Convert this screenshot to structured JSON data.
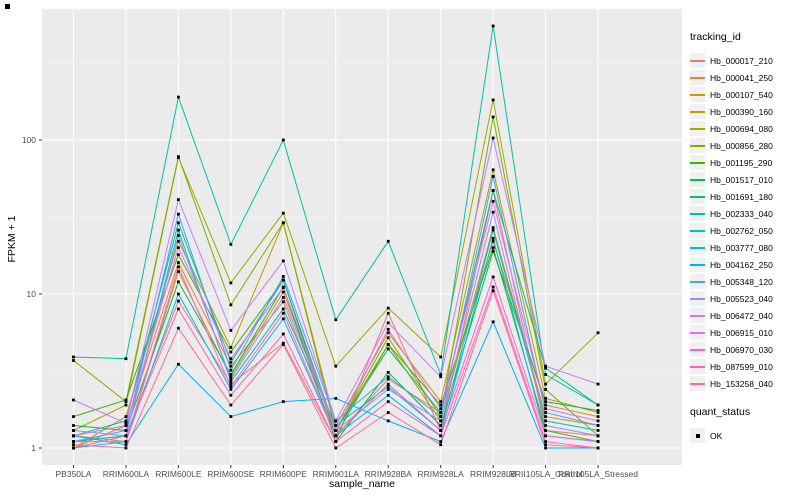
{
  "figure": {
    "x_axis_title": "sample_name",
    "y_axis_title": "FPKM + 1"
  },
  "legend": {
    "tracking_title": "tracking_id",
    "quant_title": "quant_status",
    "quant_ok_label": "OK"
  },
  "chart_data": {
    "type": "line",
    "title": "",
    "xlabel": "sample_name",
    "ylabel": "FPKM + 1",
    "y_scale": "log10",
    "grid": true,
    "legend_position": "right",
    "panel_bg": "#EBEBEB",
    "grid_color": "#FFFFFF",
    "tick_label_color": "#4D4D4D",
    "legend_key_bg": "#F0F0F0",
    "point_marker": {
      "shape": "square",
      "color": "#000000",
      "meaning": "quant_status OK"
    },
    "categories": [
      "PB350LA",
      "RRIM600LA",
      "RRIM600LE",
      "RRIM600SE",
      "RRIM600PE",
      "RRIM901LA",
      "RRIM928BA",
      "RRIM928LA",
      "RRIM928LB",
      "RRII105LA_Control",
      "RRII105LA_Stressed"
    ],
    "y_axis": {
      "ticks": [
        1,
        10,
        100
      ],
      "tick_labels": [
        "1",
        "10",
        "100"
      ],
      "minor_ticks": [
        3.162,
        31.623,
        316.23
      ],
      "visible_range_approx": [
        0.78,
        700
      ]
    },
    "series": [
      {
        "name": "Hb_000017_210",
        "color": "#F8766D",
        "values": [
          1.1,
          1.2,
          9,
          2.6,
          4.8,
          1.1,
          7.5,
          1.3,
          47,
          1.3,
          1.2
        ]
      },
      {
        "name": "Hb_000041_250",
        "color": "#EA8331",
        "values": [
          1.0,
          1.4,
          16,
          3.4,
          8.9,
          1.2,
          2.8,
          1.7,
          22,
          1.9,
          1.6
        ]
      },
      {
        "name": "Hb_000107_540",
        "color": "#D89000",
        "values": [
          1.2,
          1.1,
          14,
          2.9,
          10.3,
          1.3,
          4.7,
          1.5,
          27,
          1.6,
          1.4
        ]
      },
      {
        "name": "Hb_000390_160",
        "color": "#C09B00",
        "values": [
          1.0,
          1.6,
          22,
          4.5,
          29,
          1.4,
          5.6,
          2.0,
          64,
          2.1,
          1.7
        ]
      },
      {
        "name": "Hb_000694_080",
        "color": "#A3A500",
        "values": [
          1.3,
          1.9,
          77,
          11.8,
          33.5,
          3.4,
          8.1,
          3.9,
          182,
          2.6,
          5.6
        ]
      },
      {
        "name": "Hb_000856_280",
        "color": "#7CAE00",
        "values": [
          3.7,
          2.0,
          78,
          8.5,
          29,
          1.3,
          5.2,
          1.6,
          141,
          2.4,
          1.2
        ]
      },
      {
        "name": "Hb_001195_290",
        "color": "#39B600",
        "values": [
          1.6,
          2.05,
          18,
          4.2,
          12.3,
          1.2,
          4.7,
          1.9,
          20,
          1.3,
          1.1
        ]
      },
      {
        "name": "Hb_001517_010",
        "color": "#00BB4E",
        "values": [
          1.4,
          1.3,
          12,
          3.0,
          11.1,
          1.1,
          3.1,
          1.4,
          19,
          2.0,
          1.75
        ]
      },
      {
        "name": "Hb_001691_180",
        "color": "#00BF7D",
        "values": [
          1.2,
          1.5,
          29,
          3.6,
          12.3,
          1.3,
          4.4,
          1.7,
          47,
          3.3,
          1.9
        ]
      },
      {
        "name": "Hb_002333_040",
        "color": "#00C1A3",
        "values": [
          3.9,
          3.8,
          190,
          21,
          100,
          6.8,
          22,
          3.0,
          550,
          3.0,
          1.9
        ]
      },
      {
        "name": "Hb_002762_050",
        "color": "#00BFC4",
        "values": [
          1.1,
          1.2,
          26,
          2.7,
          8.0,
          1.4,
          2.5,
          1.3,
          26,
          1.5,
          1.3
        ]
      },
      {
        "name": "Hb_003777_080",
        "color": "#00BAE0",
        "values": [
          1.0,
          1.1,
          10,
          2.4,
          6.9,
          1.2,
          2.2,
          1.2,
          23,
          1.2,
          1.1
        ]
      },
      {
        "name": "Hb_004162_250",
        "color": "#00B0F6",
        "values": [
          1.2,
          1.05,
          3.5,
          1.6,
          2.0,
          2.1,
          1.5,
          1.1,
          6.6,
          1.0,
          1.0
        ]
      },
      {
        "name": "Hb_005348_120",
        "color": "#3FA1FF",
        "values": [
          1.1,
          1.3,
          33,
          3.2,
          13,
          1.5,
          2.9,
          1.6,
          58,
          1.7,
          1.4
        ]
      },
      {
        "name": "Hb_005523_040",
        "color": "#9590FF",
        "values": [
          1.3,
          1.2,
          24,
          2.8,
          9.5,
          1.3,
          2.4,
          1.5,
          34,
          1.4,
          1.2
        ]
      },
      {
        "name": "Hb_006472_040",
        "color": "#C77CFF",
        "values": [
          2.05,
          1.45,
          41,
          5.8,
          16.4,
          1.5,
          6.5,
          2.9,
          103,
          3.4,
          2.6
        ]
      },
      {
        "name": "Hb_006915_010",
        "color": "#E76BF3",
        "values": [
          1.2,
          1.4,
          20,
          3.8,
          11,
          1.3,
          5.9,
          1.8,
          40,
          1.8,
          1.5
        ]
      },
      {
        "name": "Hb_006970_030",
        "color": "#FA62DB",
        "values": [
          1.1,
          1.1,
          15,
          2.5,
          7.5,
          1.2,
          2.6,
          1.3,
          12.9,
          1.2,
          1.1
        ]
      },
      {
        "name": "Hb_087599_010",
        "color": "#FF62BC",
        "values": [
          1.0,
          1.2,
          8,
          2.2,
          5.5,
          1.1,
          2.0,
          1.2,
          11.1,
          1.1,
          1.0
        ]
      },
      {
        "name": "Hb_153258_040",
        "color": "#FF6A98",
        "values": [
          1.05,
          1.0,
          6,
          1.9,
          4.7,
          1.0,
          1.7,
          1.05,
          10.5,
          1.05,
          1.0
        ]
      }
    ]
  }
}
